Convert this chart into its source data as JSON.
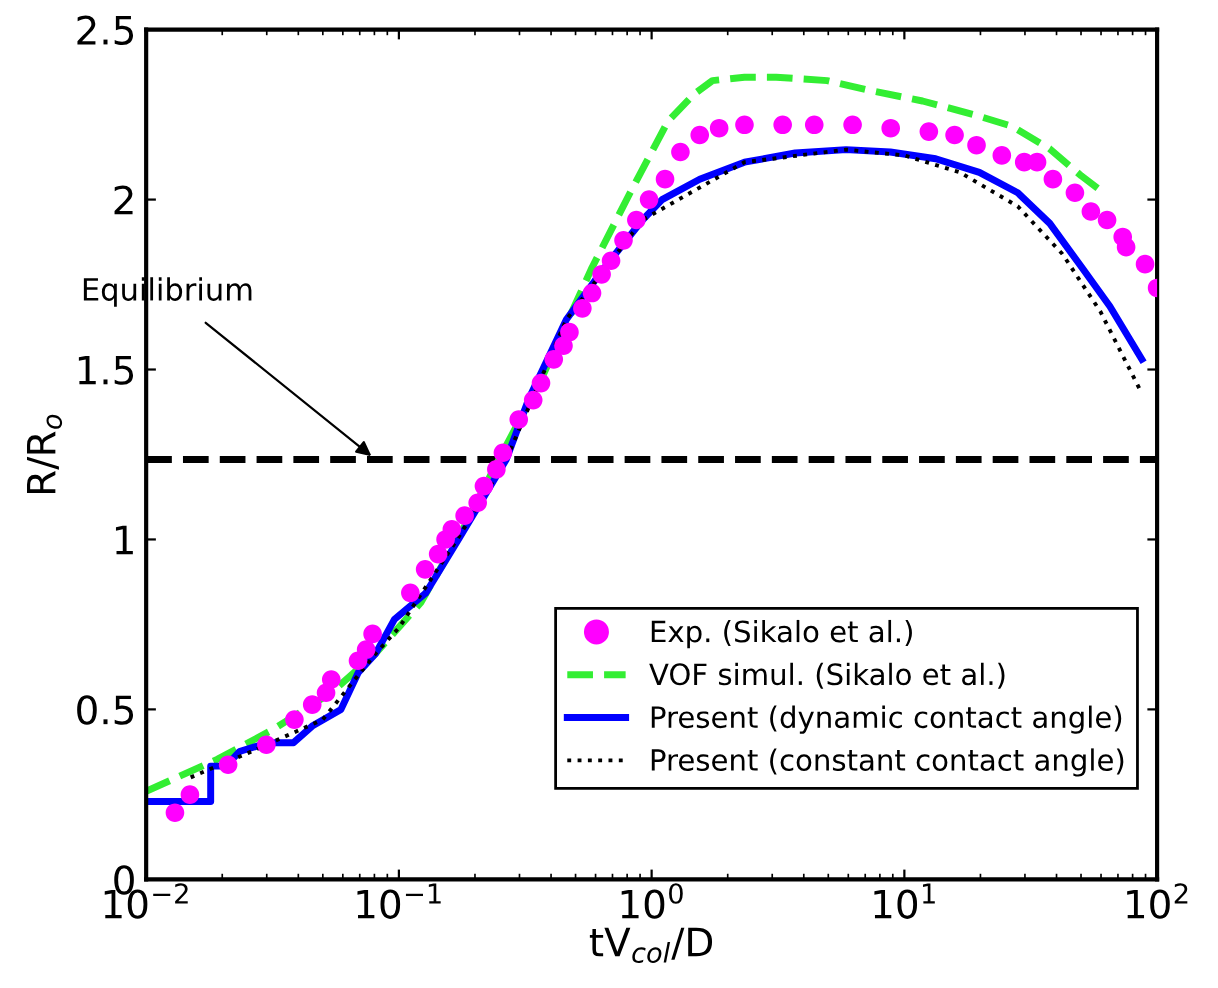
{
  "chart_data": {
    "type": "line",
    "xlabel": "tV$_{col}$/D",
    "ylabel": "R/R$_{o}$",
    "log": "x",
    "xlim": [
      0.01,
      100
    ],
    "ylim": [
      0,
      2.5
    ],
    "xticks": [
      {
        "value": 0.01,
        "label": "10$^{−2}$"
      },
      {
        "value": 0.1,
        "label": "10$^{−1}$"
      },
      {
        "value": 1,
        "label": "10$^{0}$"
      },
      {
        "value": 10,
        "label": "10$^{1}$"
      },
      {
        "value": 100,
        "label": "10$^{2}$"
      }
    ],
    "yticks": [
      0,
      0.5,
      1,
      1.5,
      2,
      2.5
    ],
    "grid": false,
    "legend": "bottom right",
    "ref_lines": [
      {
        "axis": "y",
        "value": 1.235,
        "color": "#000000",
        "line_style": "dashed"
      }
    ],
    "annotations": [
      {
        "text": "Equilibrium",
        "x": 0.081,
        "y": 1.235
      }
    ],
    "series": [
      {
        "name": "Exp. (Sikalo et al.)",
        "type": "scatter",
        "marker": "circle",
        "color": "#ff00ff",
        "x": [
          0.013,
          0.0149,
          0.0211,
          0.0299,
          0.0386,
          0.0454,
          0.0515,
          0.054,
          0.0689,
          0.0742,
          0.0787,
          0.111,
          0.127,
          0.143,
          0.153,
          0.162,
          0.182,
          0.205,
          0.217,
          0.243,
          0.258,
          0.298,
          0.34,
          0.365,
          0.41,
          0.448,
          0.473,
          0.532,
          0.581,
          0.634,
          0.691,
          0.774,
          0.87,
          0.977,
          1.13,
          1.3,
          1.55,
          1.85,
          2.33,
          3.3,
          4.4,
          6.24,
          8.83,
          12.5,
          15.8,
          19.3,
          24.3,
          29.8,
          33.5,
          38.7,
          47.3,
          54.7,
          63.4,
          73.1,
          75.4,
          89.6,
          100
        ],
        "values": [
          0.196,
          0.249,
          0.337,
          0.396,
          0.47,
          0.514,
          0.549,
          0.588,
          0.643,
          0.676,
          0.722,
          0.843,
          0.912,
          0.957,
          1.0,
          1.03,
          1.07,
          1.108,
          1.157,
          1.206,
          1.255,
          1.353,
          1.41,
          1.46,
          1.53,
          1.57,
          1.61,
          1.68,
          1.725,
          1.78,
          1.82,
          1.88,
          1.94,
          2.0,
          2.06,
          2.14,
          2.19,
          2.21,
          2.22,
          2.22,
          2.22,
          2.22,
          2.21,
          2.2,
          2.19,
          2.16,
          2.13,
          2.11,
          2.11,
          2.06,
          2.02,
          1.965,
          1.94,
          1.89,
          1.86,
          1.81,
          1.74
        ]
      },
      {
        "name": "VOF simul. (Sikalo et al.)",
        "type": "line",
        "line_style": "dashed",
        "color": "#33ee33",
        "x": [
          0.01,
          0.0191,
          0.0318,
          0.054,
          0.081,
          0.122,
          0.182,
          0.237,
          0.365,
          0.581,
          0.822,
          1.16,
          1.47,
          1.74,
          2.33,
          3.11,
          4.95,
          7.42,
          11.8,
          18.8,
          26.6,
          37.5,
          50.1,
          61.4
        ],
        "values": [
          0.259,
          0.353,
          0.441,
          0.549,
          0.665,
          0.814,
          1.04,
          1.206,
          1.47,
          1.8,
          2.02,
          2.23,
          2.31,
          2.35,
          2.36,
          2.36,
          2.35,
          2.32,
          2.29,
          2.25,
          2.216,
          2.15,
          2.07,
          2.02
        ]
      },
      {
        "name": "Present (dynamic contact angle)",
        "type": "line",
        "line_style": "solid",
        "color": "#0000ff",
        "x": [
          0.01,
          0.018,
          0.018,
          0.0207,
          0.0234,
          0.0304,
          0.0383,
          0.0454,
          0.059,
          0.069,
          0.081,
          0.096,
          0.128,
          0.172,
          0.266,
          0.325,
          0.46,
          0.651,
          0.92,
          1.1,
          1.55,
          2.33,
          3.7,
          5.88,
          8.8,
          13.3,
          19.8,
          28.1,
          37.6,
          50.4,
          65.0,
          87.0
        ],
        "values": [
          0.229,
          0.229,
          0.333,
          0.333,
          0.376,
          0.402,
          0.402,
          0.451,
          0.5,
          0.608,
          0.665,
          0.765,
          0.843,
          1.0,
          1.235,
          1.41,
          1.647,
          1.8,
          1.94,
          2.0,
          2.06,
          2.11,
          2.137,
          2.147,
          2.14,
          2.12,
          2.08,
          2.02,
          1.93,
          1.8,
          1.686,
          1.53
        ]
      },
      {
        "name": "Present (constant contact angle)",
        "type": "line",
        "line_style": "dotted",
        "color": "#000000",
        "x": [
          0.015,
          0.025,
          0.05,
          0.08,
          0.1,
          0.17,
          0.266,
          0.46,
          0.92,
          2.33,
          5.88,
          10,
          16.6,
          28.1,
          42.2,
          59.7,
          87.0
        ],
        "values": [
          0.3,
          0.37,
          0.47,
          0.66,
          0.74,
          1.0,
          1.235,
          1.647,
          1.94,
          2.11,
          2.147,
          2.13,
          2.08,
          1.98,
          1.84,
          1.67,
          1.43
        ]
      }
    ]
  }
}
